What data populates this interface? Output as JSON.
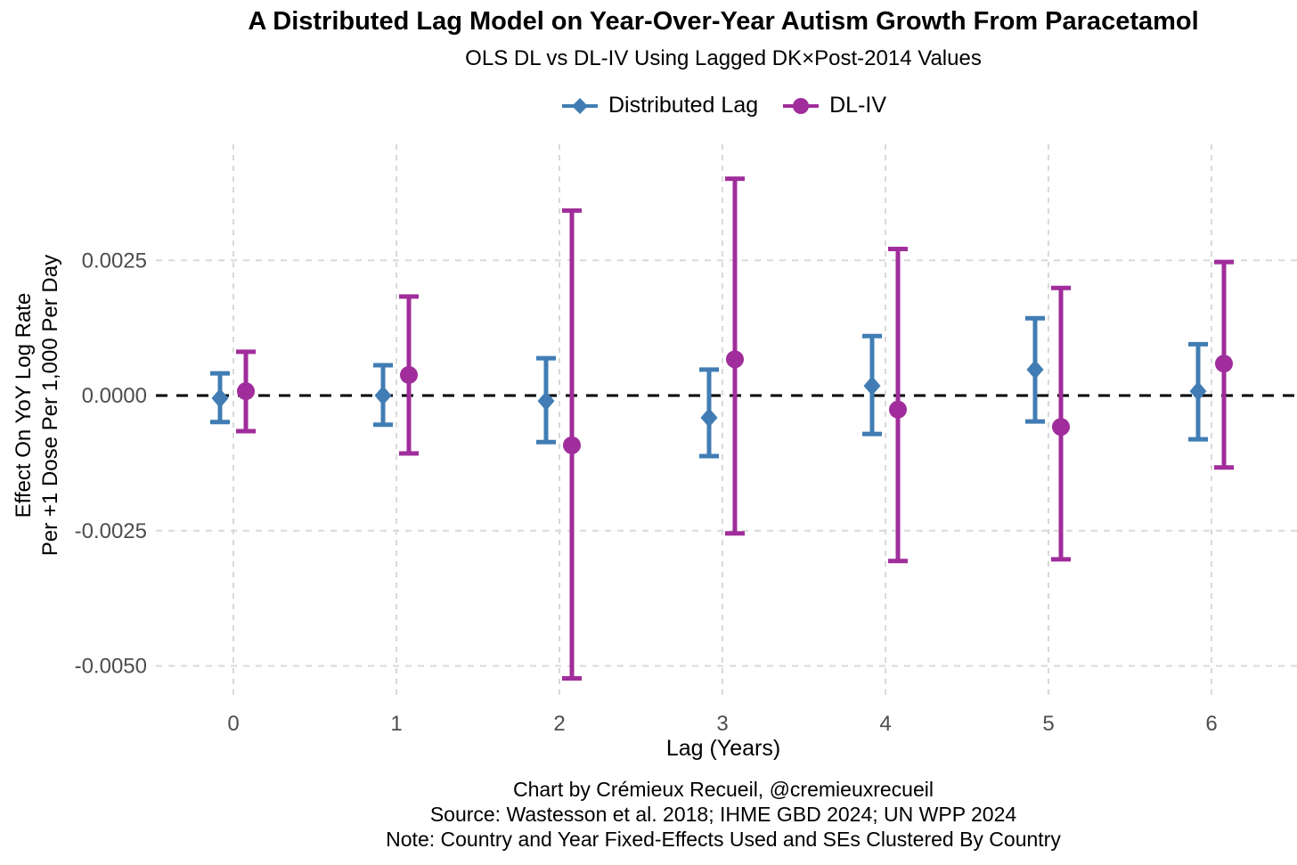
{
  "chart_data": {
    "type": "errorbar",
    "title": "A Distributed Lag Model on Year-Over-Year Autism Growth From Paracetamol",
    "subtitle": "OLS DL vs DL-IV Using Lagged DK×Post-2014 Values",
    "xlabel": "Lag (Years)",
    "ylabel_line1": "Effect On YoY Log Rate",
    "ylabel_line2": "Per +1 Dose Per 1,000 Per Day",
    "x": [
      0,
      1,
      2,
      3,
      4,
      5,
      6
    ],
    "xtick_labels": [
      "0",
      "1",
      "2",
      "3",
      "4",
      "5",
      "6"
    ],
    "yticks": [
      0.0025,
      0.0,
      -0.0025,
      -0.005
    ],
    "ytick_labels": [
      "0.0025",
      "0.0000",
      "-0.0025",
      "-0.0050"
    ],
    "ylim": [
      -0.0056,
      0.0046
    ],
    "grid": "dashed",
    "zero_reference_line": 0.0,
    "legend_position": "top",
    "series": [
      {
        "name": "Distributed Lag",
        "marker": "diamond",
        "color": "#417DB4",
        "estimates": [
          -5e-05,
          0.0,
          -0.0001,
          -0.00041,
          0.00018,
          0.00048,
          8e-05
        ],
        "ci_low": [
          -0.00049,
          -0.00054,
          -0.00086,
          -0.00112,
          -0.00071,
          -0.00048,
          -0.00081
        ],
        "ci_high": [
          0.00041,
          0.00056,
          0.00069,
          0.00048,
          0.0011,
          0.00143,
          0.00095
        ]
      },
      {
        "name": "DL-IV",
        "marker": "circle",
        "color": "#A02D9B",
        "estimates": [
          8e-05,
          0.00038,
          -0.00092,
          0.00067,
          -0.00026,
          -0.00058,
          0.00059
        ],
        "ci_low": [
          -0.00066,
          -0.00107,
          -0.00523,
          -0.00255,
          -0.00306,
          -0.00303,
          -0.00133
        ],
        "ci_high": [
          0.00081,
          0.00183,
          0.00342,
          0.00401,
          0.00271,
          0.00199,
          0.00247
        ]
      }
    ],
    "footer": {
      "credit": "Chart by Crémieux Recueil, @cremieuxrecueil",
      "source": "Source: Wastesson et al. 2018; IHME GBD 2024; UN WPP 2024",
      "note": "Note: Country and Year Fixed-Effects Used and SEs Clustered By Country"
    },
    "colors": {
      "grid": "#d9d9d9",
      "zero_line": "#000000",
      "tick_text": "#4d4d4d"
    }
  }
}
